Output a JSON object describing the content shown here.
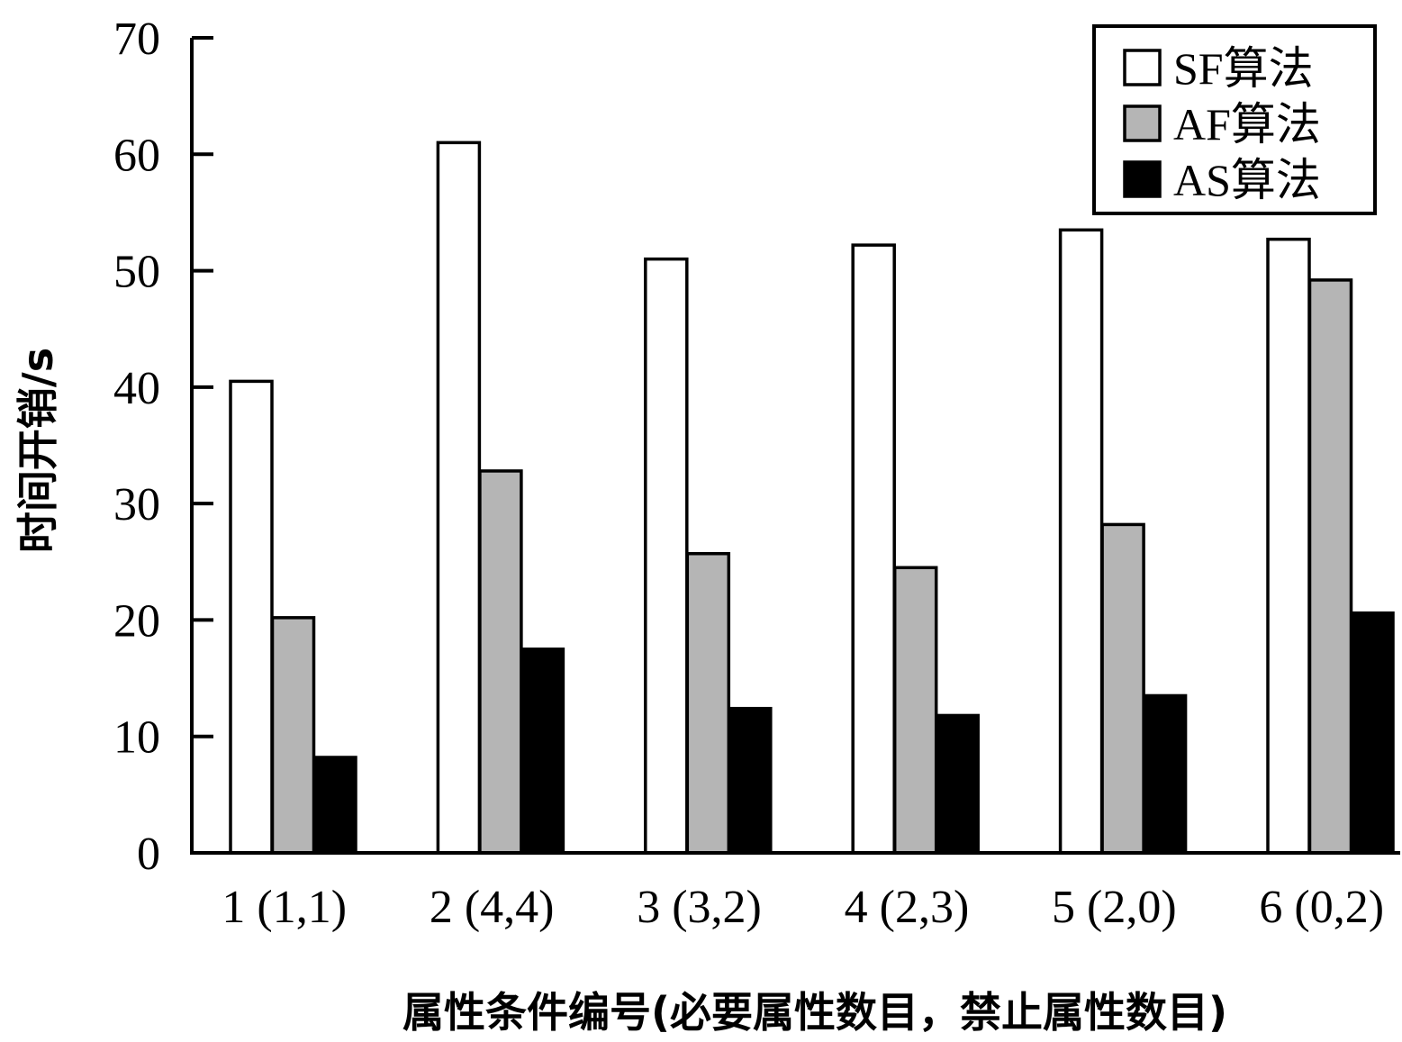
{
  "chart_data": {
    "type": "bar",
    "ylabel": "时间开销/s",
    "xlabel": "属性条件编号(必要属性数目，禁止属性数目)",
    "ylim": [
      0,
      70
    ],
    "yticks": [
      0,
      10,
      20,
      30,
      40,
      50,
      60,
      70
    ],
    "grid": false,
    "legend_position": "top-right",
    "categories": [
      "1 (1,1)",
      "2 (4,4)",
      "3 (3,2)",
      "4 (2,3)",
      "5 (2,0)",
      "6 (0,2)"
    ],
    "series": [
      {
        "name": "SF算法",
        "color": "#ffffff",
        "values": [
          40.5,
          61.0,
          51.0,
          52.2,
          53.5,
          52.7
        ]
      },
      {
        "name": "AF算法",
        "color": "#b5b5b5",
        "values": [
          20.2,
          32.8,
          25.7,
          24.5,
          28.2,
          49.2
        ]
      },
      {
        "name": "AS算法",
        "color": "#000000",
        "values": [
          8.2,
          17.5,
          12.4,
          11.8,
          13.5,
          20.6
        ]
      }
    ]
  }
}
